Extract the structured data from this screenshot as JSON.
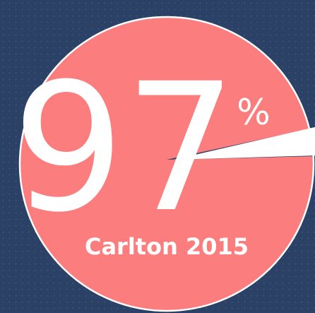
{
  "chart_data": {
    "type": "pie",
    "title": "Carlton 2015",
    "values": [
      97,
      3
    ],
    "value_labels": [
      "97%",
      null
    ],
    "colors": [
      "#fb7d7e",
      "#ffffff"
    ]
  }
}
